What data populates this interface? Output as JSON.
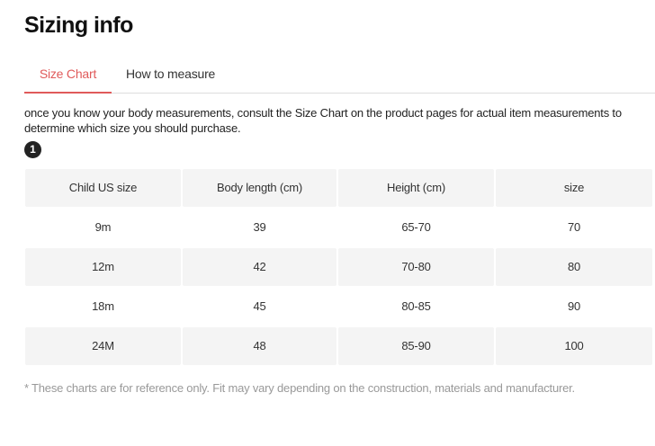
{
  "title": "Sizing info",
  "tabs": [
    {
      "label": "Size Chart",
      "active": true
    },
    {
      "label": "How to measure",
      "active": false
    }
  ],
  "description": "once you know your body measurements, consult the Size Chart on the product pages for actual item measurements to determine which size you should purchase.",
  "step_badge": "1",
  "accent_color": "#e05a5a",
  "table": {
    "headers": [
      "Child US size",
      "Body length (cm)",
      "Height (cm)",
      "size"
    ],
    "rows": [
      [
        "9m",
        "39",
        "65-70",
        "70"
      ],
      [
        "12m",
        "42",
        "70-80",
        "80"
      ],
      [
        "18m",
        "45",
        "80-85",
        "90"
      ],
      [
        "24M",
        "48",
        "85-90",
        "100"
      ]
    ]
  },
  "footnote": "* These charts are for reference only. Fit may vary depending on the construction, materials and manufacturer."
}
